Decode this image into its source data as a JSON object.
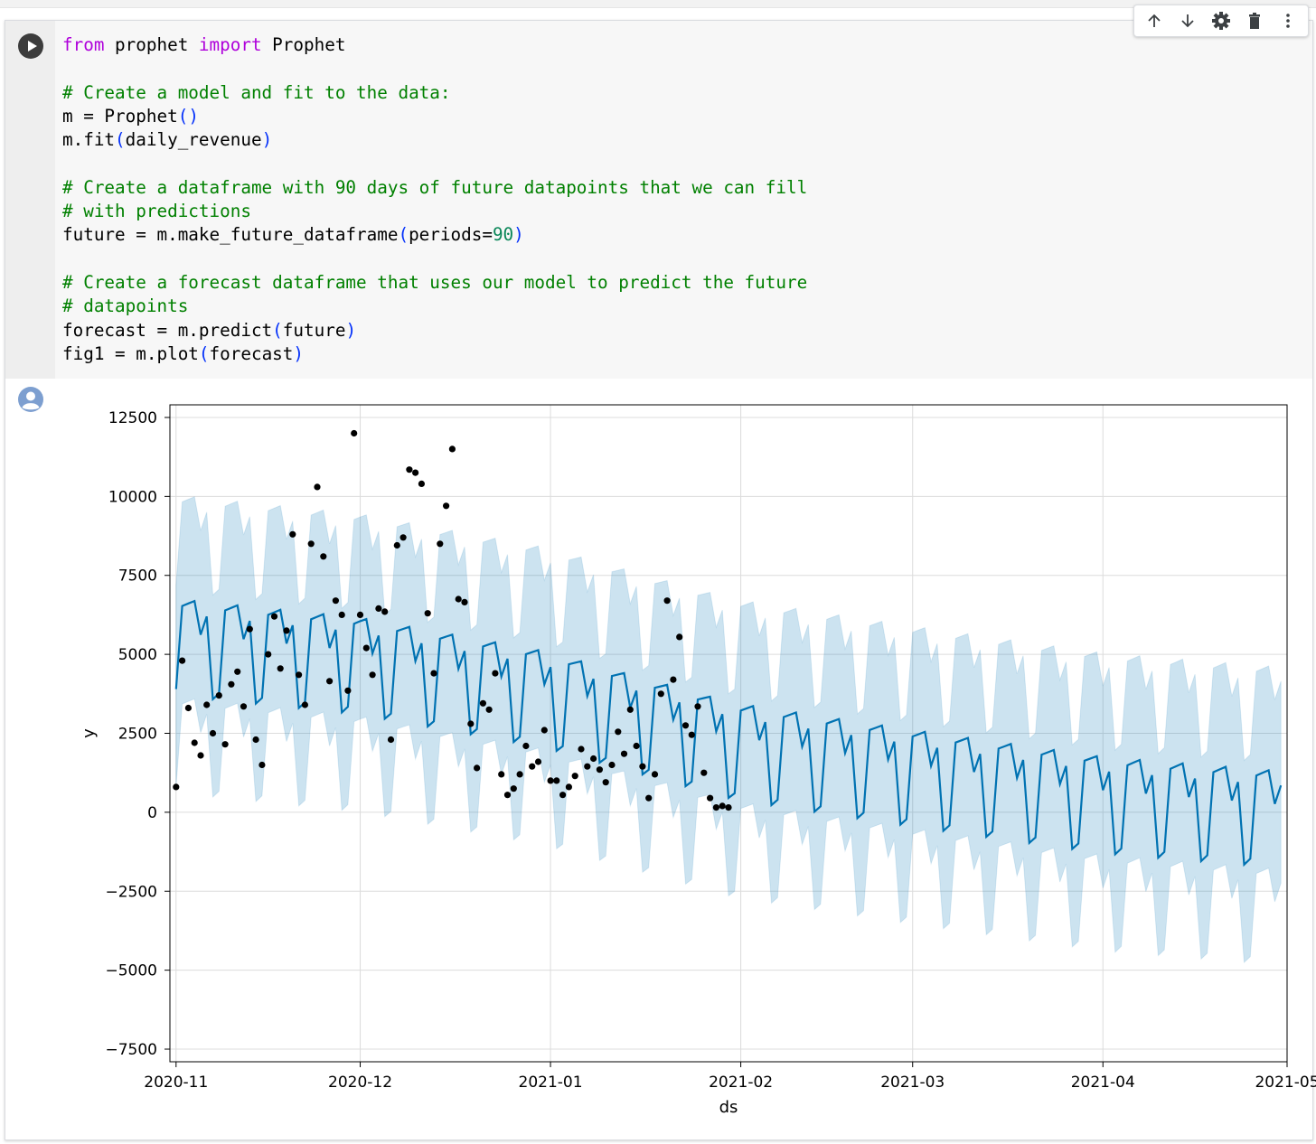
{
  "toolbar": {
    "icons": [
      "arrow-up-icon",
      "arrow-down-icon",
      "gear-icon",
      "trash-icon",
      "more-vert-icon"
    ]
  },
  "code": {
    "line1_from": "from",
    "line1_mod": " prophet ",
    "line1_import": "import",
    "line1_cls": " Prophet",
    "comment1": "# Create a model and fit to the data:",
    "l3_a": "m = Prophet",
    "l3_open": "(",
    "l3_close": ")",
    "l4_a": "m.fit",
    "l4_open": "(",
    "l4_mid": "daily_revenue",
    "l4_close": ")",
    "comment2": "# Create a dataframe with 90 days of future datapoints that we can fill",
    "comment3": "# with predictions",
    "l7_a": "future = m.make_future_dataframe",
    "l7_open": "(",
    "l7_mid": "periods=",
    "l7_num": "90",
    "l7_close": ")",
    "comment4": "# Create a forecast dataframe that uses our model to predict the future",
    "comment5": "# datapoints",
    "l10_a": "forecast = m.predict",
    "l10_open": "(",
    "l10_mid": "future",
    "l10_close": ")",
    "l11_a": "fig1 = m.plot",
    "l11_open": "(",
    "l11_mid": "forecast",
    "l11_close": ")"
  },
  "chart_data": {
    "type": "line",
    "title": "",
    "xlabel": "ds",
    "ylabel": "y",
    "xlim": [
      "2020-10-31",
      "2021-05-01"
    ],
    "ylim": [
      -7900,
      12900
    ],
    "grid": true,
    "colors": {
      "forecast": "#0072b2",
      "band": "#0072b2",
      "band_opacity": 0.2,
      "observed": "#000000"
    },
    "x_ticks": [
      {
        "date": "2020-11-01",
        "label": "2020-11"
      },
      {
        "date": "2020-12-01",
        "label": "2020-12"
      },
      {
        "date": "2021-01-01",
        "label": "2021-01"
      },
      {
        "date": "2021-02-01",
        "label": "2021-02"
      },
      {
        "date": "2021-03-01",
        "label": "2021-03"
      },
      {
        "date": "2021-04-01",
        "label": "2021-04"
      },
      {
        "date": "2021-05-01",
        "label": "2021-05"
      }
    ],
    "y_ticks": [
      {
        "value": 12500,
        "label": "12500"
      },
      {
        "value": 10000,
        "label": "10000"
      },
      {
        "value": 7500,
        "label": "7500"
      },
      {
        "value": 5000,
        "label": "5000"
      },
      {
        "value": 2500,
        "label": "2500"
      },
      {
        "value": 0,
        "label": "0"
      },
      {
        "value": -2500,
        "label": "−2500"
      },
      {
        "value": -5000,
        "label": "−5000"
      },
      {
        "value": -7500,
        "label": "−7500"
      }
    ],
    "forecast": {
      "start": "2020-11-01",
      "weekly": [
        3900,
        6550,
        6650,
        6750,
        5700,
        6300,
        3700
      ],
      "trend": [
        [
          0,
          0
        ],
        [
          30,
          -600
        ],
        [
          60,
          -1650
        ],
        [
          91,
          -3300
        ],
        [
          120,
          -4150
        ],
        [
          151,
          -5000
        ],
        [
          180,
          -5450
        ]
      ],
      "band_upper": 3300,
      "band_lower": 3100
    },
    "observed": [
      [
        0,
        800
      ],
      [
        1,
        4800
      ],
      [
        2,
        3300
      ],
      [
        3,
        2200
      ],
      [
        4,
        1800
      ],
      [
        5,
        3400
      ],
      [
        6,
        2500
      ],
      [
        7,
        3700
      ],
      [
        8,
        2150
      ],
      [
        9,
        4050
      ],
      [
        10,
        4450
      ],
      [
        11,
        3350
      ],
      [
        12,
        5800
      ],
      [
        13,
        2300
      ],
      [
        14,
        1500
      ],
      [
        15,
        5000
      ],
      [
        16,
        6200
      ],
      [
        17,
        4550
      ],
      [
        18,
        5750
      ],
      [
        19,
        8800
      ],
      [
        20,
        4350
      ],
      [
        21,
        3400
      ],
      [
        22,
        8500
      ],
      [
        23,
        10300
      ],
      [
        24,
        8100
      ],
      [
        25,
        4150
      ],
      [
        26,
        6700
      ],
      [
        27,
        6250
      ],
      [
        28,
        3850
      ],
      [
        29,
        12000
      ],
      [
        30,
        6250
      ],
      [
        31,
        5200
      ],
      [
        32,
        4350
      ],
      [
        33,
        6450
      ],
      [
        34,
        6350
      ],
      [
        35,
        2300
      ],
      [
        36,
        8450
      ],
      [
        37,
        8700
      ],
      [
        38,
        10850
      ],
      [
        39,
        10750
      ],
      [
        40,
        10400
      ],
      [
        41,
        6300
      ],
      [
        42,
        4400
      ],
      [
        43,
        8500
      ],
      [
        44,
        9700
      ],
      [
        45,
        11500
      ],
      [
        46,
        6750
      ],
      [
        47,
        6650
      ],
      [
        48,
        2800
      ],
      [
        49,
        1400
      ],
      [
        50,
        3450
      ],
      [
        51,
        3250
      ],
      [
        52,
        4400
      ],
      [
        53,
        1200
      ],
      [
        54,
        550
      ],
      [
        55,
        750
      ],
      [
        56,
        1200
      ],
      [
        57,
        2100
      ],
      [
        58,
        1450
      ],
      [
        59,
        1600
      ],
      [
        60,
        2600
      ],
      [
        61,
        1000
      ],
      [
        62,
        1000
      ],
      [
        63,
        550
      ],
      [
        64,
        800
      ],
      [
        65,
        1150
      ],
      [
        66,
        2000
      ],
      [
        67,
        1450
      ],
      [
        68,
        1700
      ],
      [
        69,
        1350
      ],
      [
        70,
        950
      ],
      [
        71,
        1500
      ],
      [
        72,
        2550
      ],
      [
        73,
        1850
      ],
      [
        74,
        3250
      ],
      [
        75,
        2100
      ],
      [
        76,
        1450
      ],
      [
        77,
        450
      ],
      [
        78,
        1200
      ],
      [
        79,
        3750
      ],
      [
        80,
        6700
      ],
      [
        81,
        4200
      ],
      [
        82,
        5550
      ],
      [
        83,
        2750
      ],
      [
        84,
        2450
      ],
      [
        85,
        3350
      ],
      [
        86,
        1250
      ],
      [
        87,
        450
      ],
      [
        88,
        150
      ],
      [
        89,
        200
      ],
      [
        90,
        150
      ]
    ]
  }
}
